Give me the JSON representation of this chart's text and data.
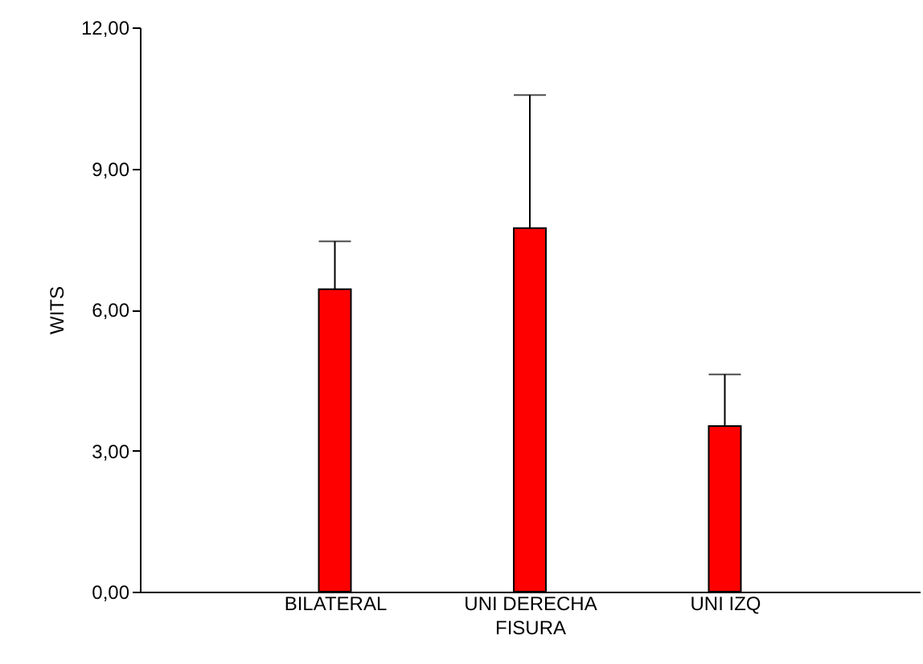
{
  "chart_data": {
    "type": "bar",
    "xlabel": "FISURA",
    "ylabel": "WITS",
    "categories": [
      "BILATERAL",
      "UNI DERECHA",
      "UNI IZQ"
    ],
    "values": [
      6.43,
      7.73,
      3.52
    ],
    "color": "#ff0000",
    "errors": [
      [
        6.43,
        7.45
      ],
      [
        7.73,
        10.56
      ],
      [
        3.52,
        4.62
      ]
    ],
    "ylim": [
      0,
      12
    ],
    "yticks": [
      {
        "value": 0,
        "label": "0,00"
      },
      {
        "value": 3,
        "label": "3,00"
      },
      {
        "value": 6,
        "label": "6,00"
      },
      {
        "value": 9,
        "label": "9,00"
      },
      {
        "value": 12,
        "label": "12,00"
      }
    ],
    "grid": false
  }
}
